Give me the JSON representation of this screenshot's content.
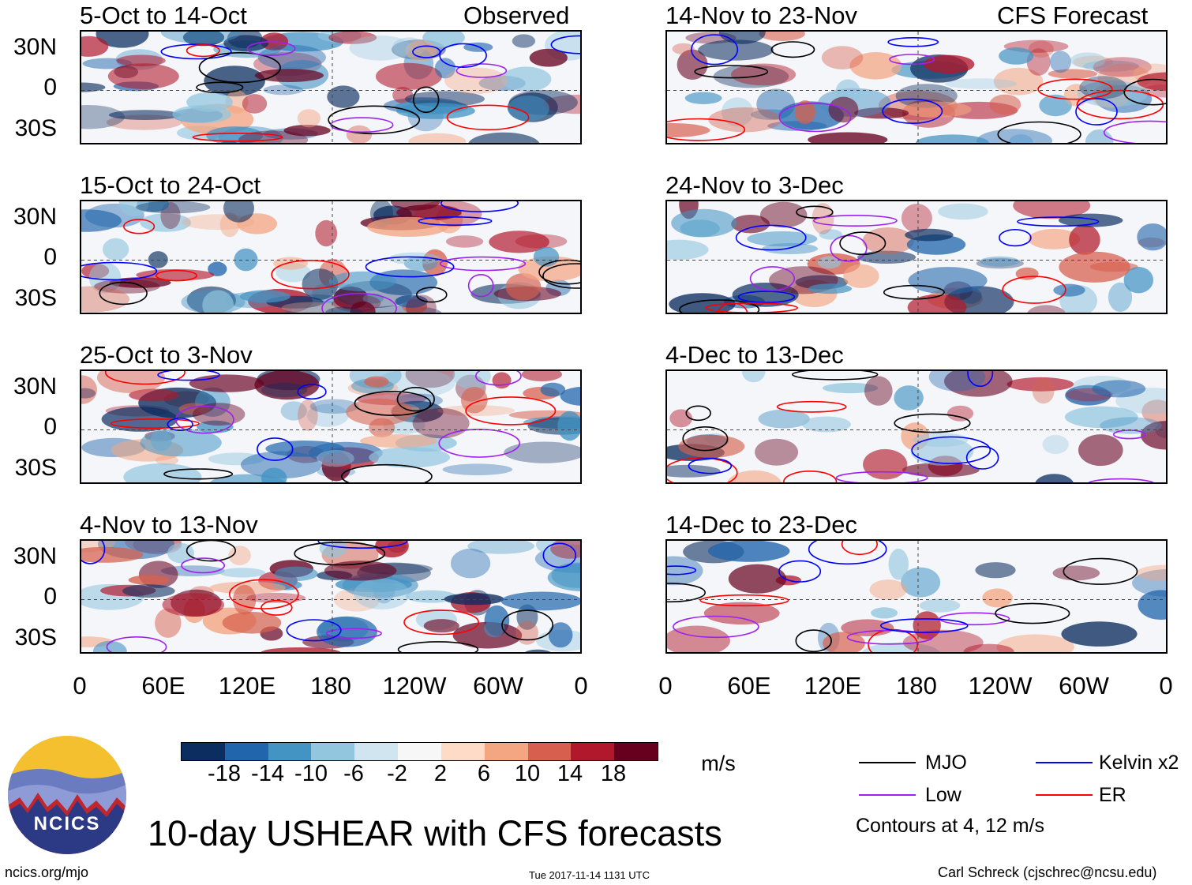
{
  "figure": {
    "main_title": "10-day USHEAR with CFS forecasts",
    "observed_label": "Observed",
    "forecast_label": "CFS Forecast",
    "units": "m/s",
    "contours_note": "Contours at 4, 12 m/s",
    "footer_left": "ncics.org/mjo",
    "footer_center": "Tue 2017-11-14 1131 UTC",
    "footer_right": "Carl Schreck (cjschrec@ncsu.edu)",
    "logo_text": "NCICS"
  },
  "y_axis_labels": [
    "30N",
    "0",
    "30S"
  ],
  "x_axis_labels": [
    "0",
    "60E",
    "120E",
    "180",
    "120W",
    "60W",
    "0"
  ],
  "panels_left": [
    {
      "title": "5-Oct to 14-Oct"
    },
    {
      "title": "15-Oct to 24-Oct"
    },
    {
      "title": "25-Oct to 3-Nov"
    },
    {
      "title": "4-Nov to 13-Nov"
    }
  ],
  "panels_right": [
    {
      "title": "14-Nov to 23-Nov"
    },
    {
      "title": "24-Nov to 3-Dec"
    },
    {
      "title": "4-Dec to 13-Dec"
    },
    {
      "title": "14-Dec to 23-Dec"
    }
  ],
  "colorbar": {
    "labels": [
      "-18",
      "-14",
      "-10",
      "-6",
      "-2",
      "2",
      "6",
      "10",
      "14",
      "18"
    ],
    "colors": [
      "#0b2d5f",
      "#2166ac",
      "#4393c3",
      "#92c5de",
      "#d1e5f0",
      "#f7f7f7",
      "#fddbc7",
      "#f4a582",
      "#d6604d",
      "#b2182b",
      "#67001f"
    ]
  },
  "legend": [
    {
      "label": "MJO",
      "color": "#000000"
    },
    {
      "label": "Kelvin x2",
      "color": "#0000ff"
    },
    {
      "label": "Low",
      "color": "#a020f0"
    },
    {
      "label": "ER",
      "color": "#ff0000"
    }
  ]
}
